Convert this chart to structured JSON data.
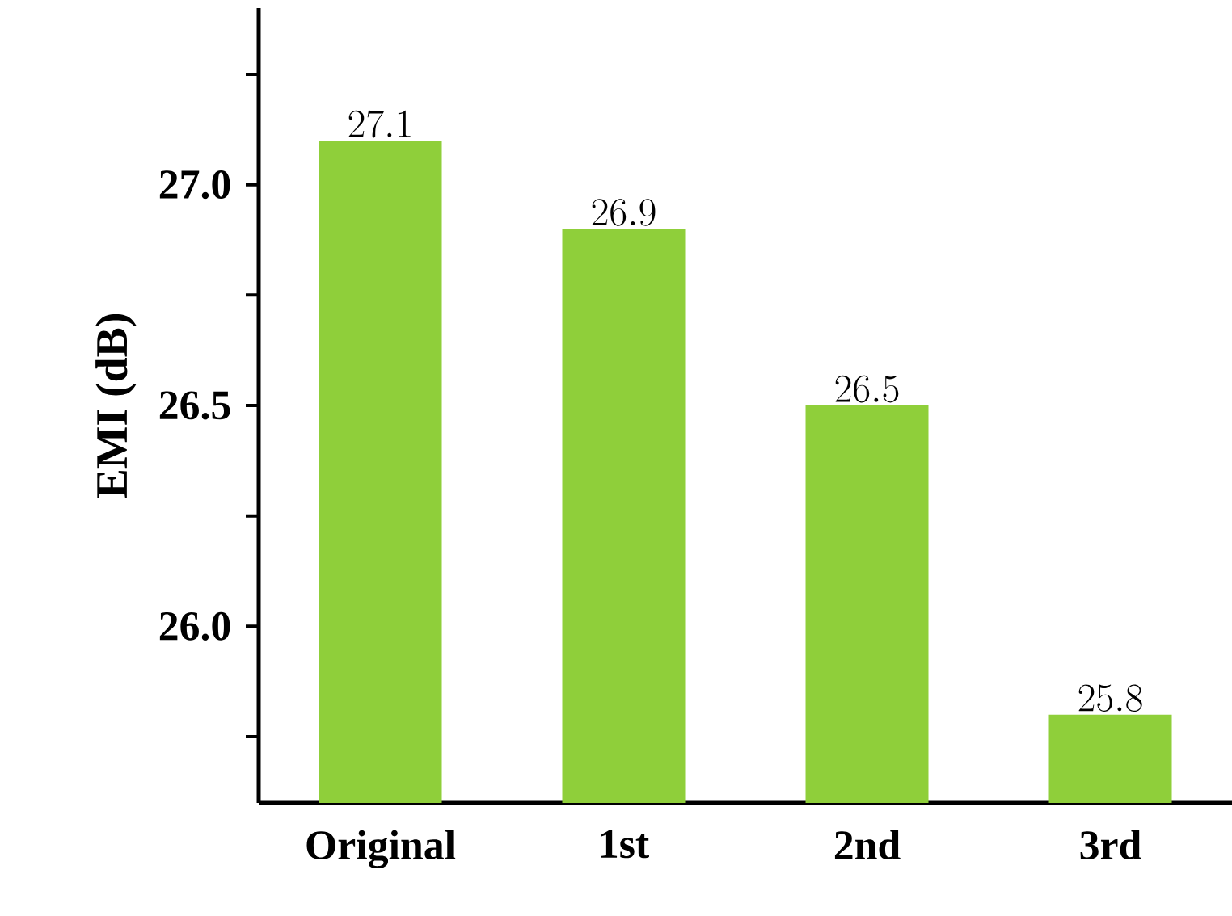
{
  "chart_data": {
    "type": "bar",
    "ylabel": "EMI (dB)",
    "categories": [
      "Original",
      "1st",
      "2nd",
      "3rd"
    ],
    "values": [
      27.1,
      26.9,
      26.5,
      25.8
    ],
    "color": "#8fcf3a",
    "ylim": [
      25.6,
      27.4
    ],
    "yticks": [
      {
        "value": 25.75,
        "label": null
      },
      "26.0",
      {
        "value": 26.25,
        "label": null
      },
      "26.5",
      {
        "value": 26.75,
        "label": null
      },
      "27.0",
      {
        "value": 27.25,
        "label": null
      }
    ],
    "data_labels": true,
    "grid": false
  }
}
